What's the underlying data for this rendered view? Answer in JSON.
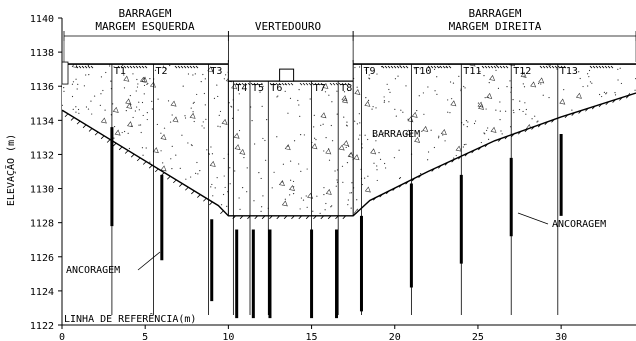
{
  "sections": {
    "left_line1": "BARRAGEM",
    "left_line2": "MARGEM ESQUERDA",
    "center": "VERTEDOURO",
    "right_line1": "BARRAGEM",
    "right_line2": "MARGEM DIREITA"
  },
  "axes": {
    "ylabel": "ELEVAÇÃO (m)",
    "xlabel": "LINHA DE REFERÊNCIA(m)",
    "y_ticks": [
      1122,
      1124,
      1126,
      1128,
      1130,
      1132,
      1134,
      1136,
      1138,
      1140
    ],
    "x_ticks": [
      0,
      5,
      10,
      15,
      20,
      25,
      30
    ],
    "y_range": [
      1122,
      1140
    ],
    "x_range": [
      0,
      34.5
    ]
  },
  "labels": {
    "body": "BARRAGEM",
    "anchor_left": "ANCORAGEM",
    "anchor_right": "ANCORAGEM"
  },
  "elements": {
    "crest_elev": 1137.3,
    "crest_left_end": 10,
    "crest_right_start": 17.5,
    "spillway_top": 1136.3,
    "spillway_box_x": 13.5,
    "foundation_profile": [
      [
        0,
        1134.6
      ],
      [
        9.4,
        1129.0
      ],
      [
        10.0,
        1128.4
      ],
      [
        17.5,
        1128.4
      ],
      [
        18.5,
        1129.3
      ],
      [
        22,
        1131.0
      ],
      [
        26,
        1132.8
      ],
      [
        30,
        1134.2
      ],
      [
        34.5,
        1135.6
      ]
    ],
    "anchor_points_note": "",
    "anchors": [
      {
        "x": 3.0,
        "top": 1133.6,
        "bottom": 1127.8
      },
      {
        "x": 6.0,
        "top": 1130.8,
        "bottom": 1125.8
      },
      {
        "x": 9.0,
        "top": 1128.2,
        "bottom": 1123.4
      },
      {
        "x": 10.5,
        "top": 1127.6,
        "bottom": 1122.4
      },
      {
        "x": 11.5,
        "top": 1127.6,
        "bottom": 1122.4
      },
      {
        "x": 12.5,
        "top": 1127.6,
        "bottom": 1122.4
      },
      {
        "x": 15.0,
        "top": 1127.6,
        "bottom": 1122.4
      },
      {
        "x": 16.5,
        "top": 1127.6,
        "bottom": 1122.4
      },
      {
        "x": 18.0,
        "top": 1128.4,
        "bottom": 1122.8
      },
      {
        "x": 21.0,
        "top": 1130.3,
        "bottom": 1124.2
      },
      {
        "x": 24.0,
        "top": 1130.8,
        "bottom": 1125.6
      },
      {
        "x": 27.0,
        "top": 1131.8,
        "bottom": 1127.2
      },
      {
        "x": 30.0,
        "top": 1133.2,
        "bottom": 1128.4
      }
    ],
    "tendons": [
      {
        "name": "T1",
        "x": 3.0
      },
      {
        "name": "T2",
        "x": 5.5
      },
      {
        "name": "T3",
        "x": 8.8
      },
      {
        "name": "T4",
        "x": 10.3
      },
      {
        "name": "T5",
        "x": 11.3
      },
      {
        "name": "T6",
        "x": 12.4
      },
      {
        "name": "T7",
        "x": 15.0
      },
      {
        "name": "T8",
        "x": 16.6
      },
      {
        "name": "T9",
        "x": 18.0
      },
      {
        "name": "T10",
        "x": 21.0
      },
      {
        "name": "T11",
        "x": 24.0
      },
      {
        "name": "T12",
        "x": 27.0
      },
      {
        "name": "T13",
        "x": 29.8
      }
    ]
  }
}
